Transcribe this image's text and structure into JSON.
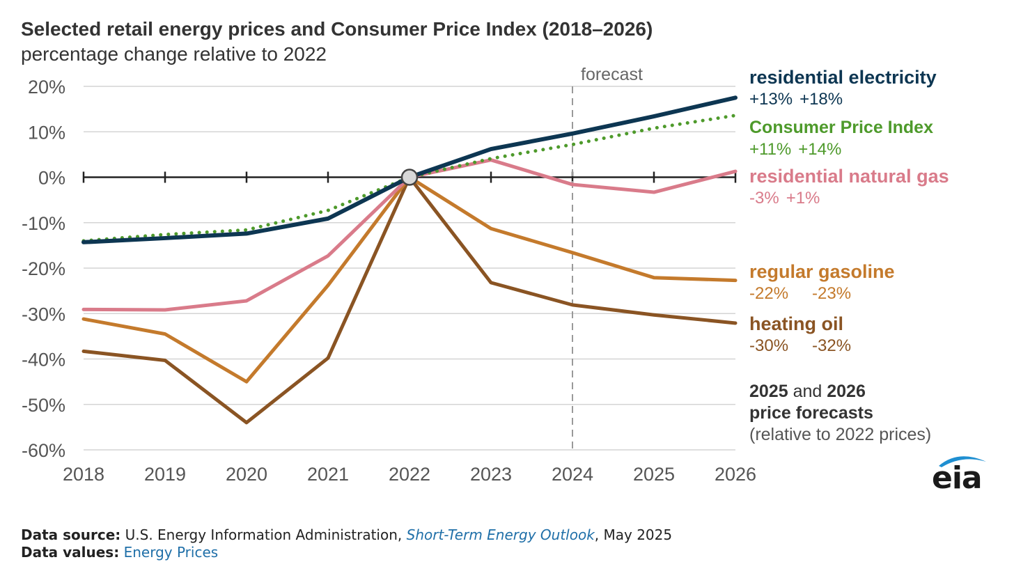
{
  "header": {
    "title": "Selected retail energy prices and Consumer Price Index (2018–2026)",
    "subtitle": "percentage change relative to 2022"
  },
  "chart_data": {
    "type": "line",
    "title": "Selected retail energy prices and Consumer Price Index (2018–2026)",
    "subtitle": "percentage change relative to 2022",
    "x": [
      "2018",
      "2019",
      "2020",
      "2021",
      "2022",
      "2023",
      "2024",
      "2025",
      "2026"
    ],
    "ylim": [
      -60,
      20
    ],
    "yticks": [
      "20%",
      "10%",
      "0%",
      "-10%",
      "-20%",
      "-30%",
      "-40%",
      "-50%",
      "-60%"
    ],
    "grid": true,
    "base_year": "2022",
    "forecast_label": "forecast",
    "forecast_start": "2024",
    "legend_position": "right (direct labels)",
    "series": [
      {
        "name": "residential electricity",
        "color": "#0d3652",
        "style": "solid",
        "values": [
          -14.3,
          -13.4,
          -12.4,
          -9.1,
          0,
          6.2,
          9.6,
          13.4,
          17.5
        ],
        "label_values": [
          "+13%",
          "+18%"
        ]
      },
      {
        "name": "Consumer Price Index",
        "color": "#4e9a2b",
        "style": "dotted",
        "values": [
          -14.0,
          -12.6,
          -11.6,
          -7.3,
          0,
          4.1,
          7.2,
          10.8,
          13.6
        ],
        "label_values": [
          "+11%",
          "+14%"
        ]
      },
      {
        "name": "residential natural gas",
        "color": "#d97b8a",
        "style": "solid",
        "values": [
          -29.1,
          -29.2,
          -27.2,
          -17.3,
          0,
          3.8,
          -1.6,
          -3.3,
          1.3
        ],
        "label_values": [
          "-3%",
          "+1%"
        ]
      },
      {
        "name": "regular gasoline",
        "color": "#c47a2c",
        "style": "solid",
        "values": [
          -31.2,
          -34.5,
          -45.0,
          -23.8,
          0,
          -11.3,
          -16.6,
          -22.1,
          -22.7
        ],
        "label_values": [
          "-22%",
          "-23%"
        ]
      },
      {
        "name": "heating oil",
        "color": "#8a5423",
        "style": "solid",
        "values": [
          -38.3,
          -40.3,
          -54.0,
          -39.8,
          0,
          -23.2,
          -28.1,
          -30.3,
          -32.1
        ],
        "label_values": [
          "-30%",
          "-32%"
        ]
      }
    ]
  },
  "labels": [
    {
      "name": "residential electricity",
      "v1": "+13%",
      "v2": "+18%",
      "color": "#0d3652"
    },
    {
      "name": "Consumer Price Index",
      "v1": "+11%",
      "v2": "+14%",
      "color": "#4e9a2b"
    },
    {
      "name": "residential natural gas",
      "v1": "-3%",
      "v2": "+1%",
      "color": "#d97b8a"
    },
    {
      "name": "regular gasoline",
      "v1": "-22%",
      "v2": "-23%",
      "color": "#c47a2c"
    },
    {
      "name": "heating oil",
      "v1": "-30%",
      "v2": "-32%",
      "color": "#8a5423"
    }
  ],
  "forecast_note": {
    "year1": "2025",
    "and": "and",
    "year2": "2026",
    "line2": "price forecasts",
    "line3": "(relative to 2022 prices)"
  },
  "logo": {
    "text": "eia"
  },
  "footer": {
    "source_label": "Data source:",
    "source_text": "U.S. Energy Information Administration,",
    "source_link": "Short-Term Energy Outlook",
    "source_date": ", May 2025",
    "values_label": "Data values:",
    "values_link": "Energy Prices"
  }
}
